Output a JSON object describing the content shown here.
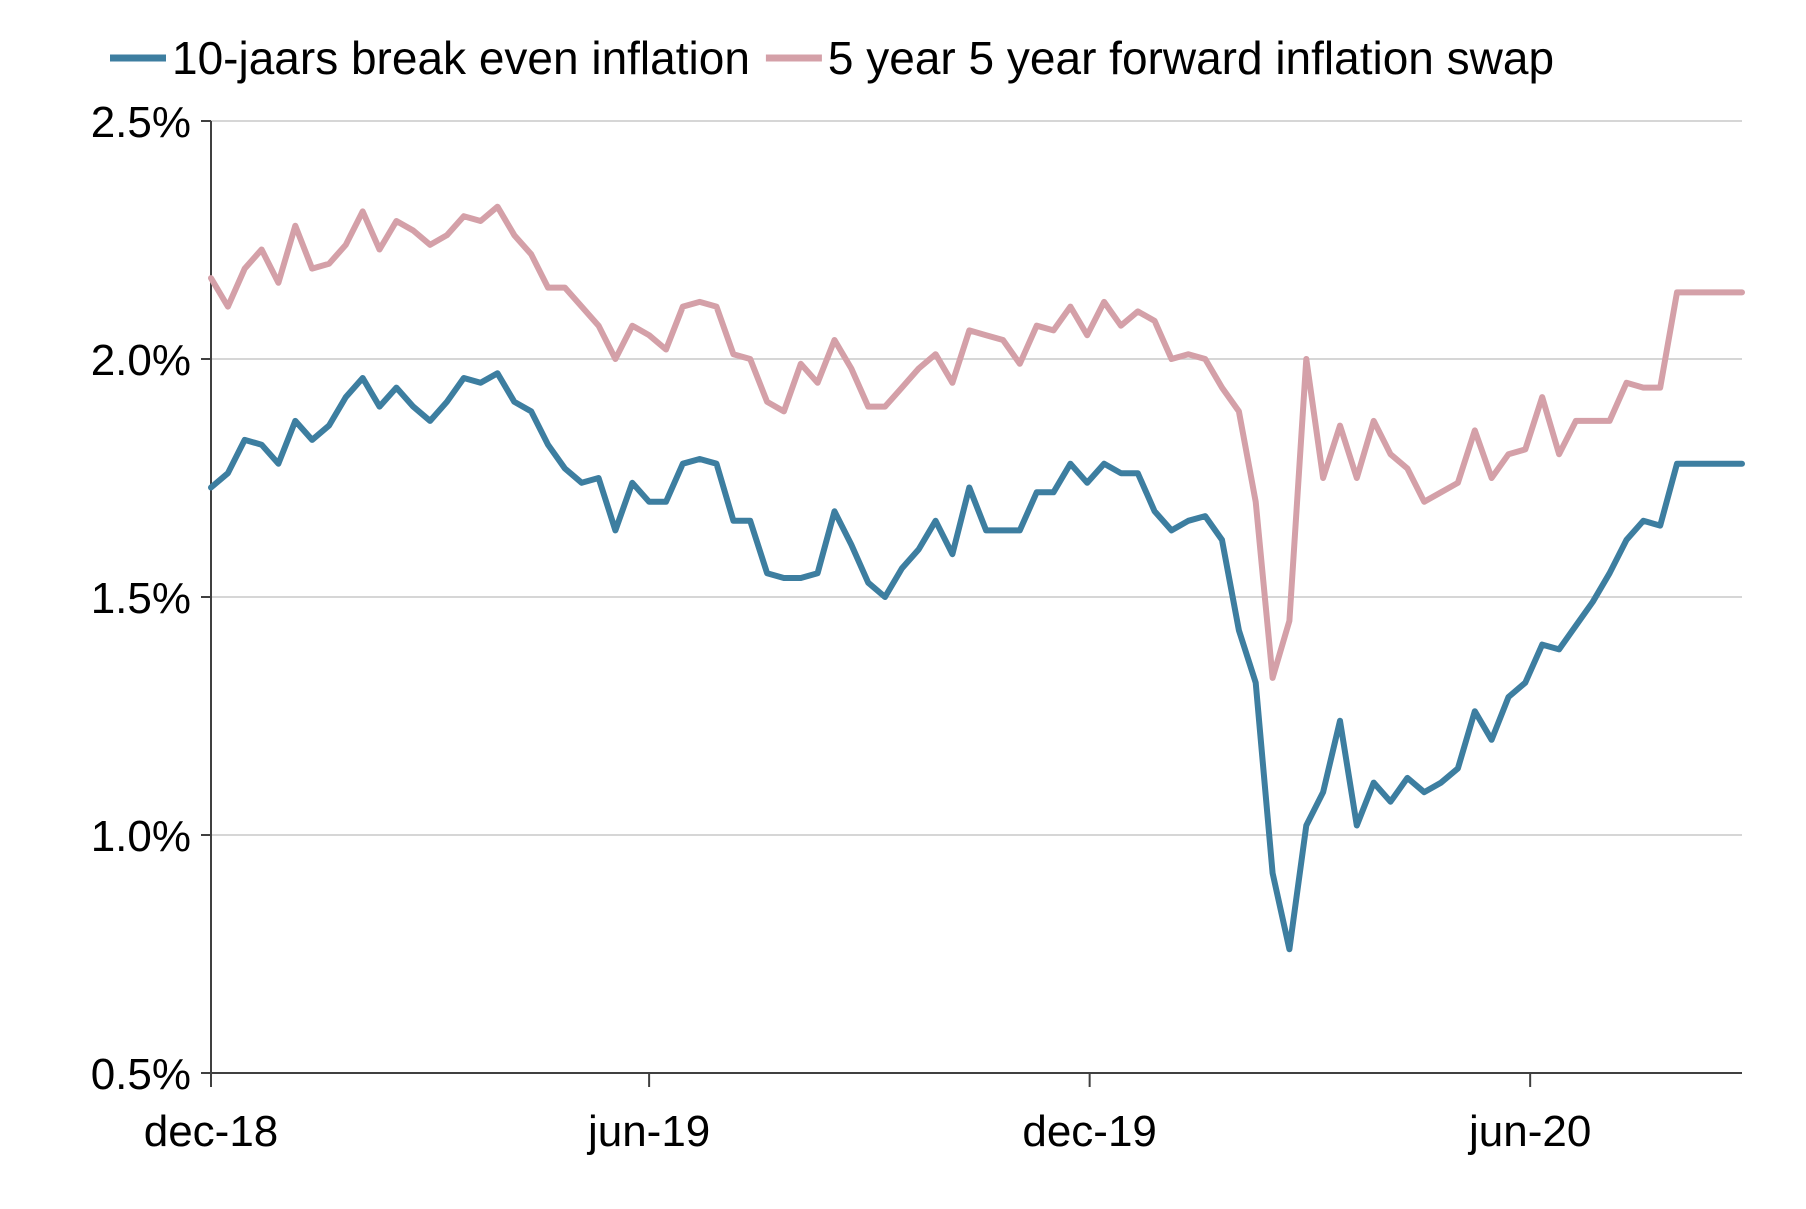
{
  "chart_data": {
    "type": "line",
    "title": "",
    "xlabel": "",
    "ylabel": "",
    "ylim": [
      0.5,
      2.5
    ],
    "y_ticks": [
      "0.5%",
      "1.0%",
      "1.5%",
      "2.0%",
      "2.5%"
    ],
    "x_range": [
      "2018-12-01",
      "2020-08-28"
    ],
    "x_ticks": [
      {
        "date": "2018-12-01",
        "label": "dec-18"
      },
      {
        "date": "2019-06-01",
        "label": "jun-19"
      },
      {
        "date": "2019-12-01",
        "label": "dec-19"
      },
      {
        "date": "2020-06-01",
        "label": "jun-20"
      }
    ],
    "grid": "horizontal",
    "legend_position": "top",
    "x": [
      "2018-12-01",
      "2018-12-08",
      "2018-12-15",
      "2018-12-22",
      "2018-12-29",
      "2019-01-05",
      "2019-01-12",
      "2019-01-19",
      "2019-01-26",
      "2019-02-02",
      "2019-02-09",
      "2019-02-16",
      "2019-02-23",
      "2019-03-02",
      "2019-03-09",
      "2019-03-16",
      "2019-03-23",
      "2019-03-30",
      "2019-04-06",
      "2019-04-13",
      "2019-04-20",
      "2019-04-27",
      "2019-05-04",
      "2019-05-11",
      "2019-05-18",
      "2019-05-25",
      "2019-06-01",
      "2019-06-08",
      "2019-06-15",
      "2019-06-22",
      "2019-06-29",
      "2019-07-06",
      "2019-07-13",
      "2019-07-20",
      "2019-07-27",
      "2019-08-03",
      "2019-08-10",
      "2019-08-17",
      "2019-08-24",
      "2019-08-31",
      "2019-09-07",
      "2019-09-14",
      "2019-09-21",
      "2019-09-28",
      "2019-10-05",
      "2019-10-12",
      "2019-10-19",
      "2019-10-26",
      "2019-11-02",
      "2019-11-09",
      "2019-11-16",
      "2019-11-23",
      "2019-11-30",
      "2019-12-07",
      "2019-12-14",
      "2019-12-21",
      "2019-12-28",
      "2020-01-04",
      "2020-01-11",
      "2020-01-18",
      "2020-01-25",
      "2020-02-01",
      "2020-02-08",
      "2020-02-15",
      "2020-02-22",
      "2020-02-29",
      "2020-03-07",
      "2020-03-14",
      "2020-03-21",
      "2020-03-28",
      "2020-04-04",
      "2020-04-11",
      "2020-04-18",
      "2020-04-25",
      "2020-05-02",
      "2020-05-09",
      "2020-05-16",
      "2020-05-23",
      "2020-05-30",
      "2020-06-06",
      "2020-06-13",
      "2020-06-20",
      "2020-06-27",
      "2020-07-04",
      "2020-07-11",
      "2020-07-18",
      "2020-07-25",
      "2020-08-01",
      "2020-08-08",
      "2020-08-15",
      "2020-08-22",
      "2020-08-28"
    ],
    "series": [
      {
        "name": "10-jaars break even inflation",
        "color": "#3d7ea0",
        "values": [
          1.73,
          1.76,
          1.83,
          1.82,
          1.78,
          1.87,
          1.83,
          1.86,
          1.92,
          1.96,
          1.9,
          1.94,
          1.9,
          1.87,
          1.91,
          1.96,
          1.95,
          1.97,
          1.91,
          1.89,
          1.82,
          1.77,
          1.74,
          1.75,
          1.64,
          1.74,
          1.7,
          1.7,
          1.78,
          1.79,
          1.78,
          1.66,
          1.66,
          1.55,
          1.54,
          1.54,
          1.55,
          1.68,
          1.61,
          1.53,
          1.5,
          1.56,
          1.6,
          1.66,
          1.59,
          1.73,
          1.64,
          1.64,
          1.64,
          1.72,
          1.72,
          1.78,
          1.74,
          1.78,
          1.76,
          1.76,
          1.68,
          1.64,
          1.66,
          1.67,
          1.62,
          1.43,
          1.32,
          0.92,
          0.76,
          1.02,
          1.09,
          1.24,
          1.02,
          1.11,
          1.07,
          1.12,
          1.09,
          1.11,
          1.14,
          1.26,
          1.2,
          1.29,
          1.32,
          1.4,
          1.39,
          1.44,
          1.49,
          1.55,
          1.62,
          1.66,
          1.65,
          1.78,
          1.78,
          1.78,
          1.78,
          1.78
        ]
      },
      {
        "name": "5 year 5 year forward inflation swap",
        "color": "#d4a0a8",
        "values": [
          2.17,
          2.11,
          2.19,
          2.23,
          2.16,
          2.28,
          2.19,
          2.2,
          2.24,
          2.31,
          2.23,
          2.29,
          2.27,
          2.24,
          2.26,
          2.3,
          2.29,
          2.32,
          2.26,
          2.22,
          2.15,
          2.15,
          2.11,
          2.07,
          2.0,
          2.07,
          2.05,
          2.02,
          2.11,
          2.12,
          2.11,
          2.01,
          2.0,
          1.91,
          1.89,
          1.99,
          1.95,
          2.04,
          1.98,
          1.9,
          1.9,
          1.94,
          1.98,
          2.01,
          1.95,
          2.06,
          2.05,
          2.04,
          1.99,
          2.07,
          2.06,
          2.11,
          2.05,
          2.12,
          2.07,
          2.1,
          2.08,
          2.0,
          2.01,
          2.0,
          1.94,
          1.89,
          1.7,
          1.33,
          1.45,
          2.0,
          1.75,
          1.86,
          1.75,
          1.87,
          1.8,
          1.77,
          1.7,
          1.72,
          1.74,
          1.85,
          1.75,
          1.8,
          1.81,
          1.92,
          1.8,
          1.87,
          1.87,
          1.87,
          1.95,
          1.94,
          1.94,
          2.14,
          2.14,
          2.14,
          2.14,
          2.14
        ]
      }
    ]
  }
}
